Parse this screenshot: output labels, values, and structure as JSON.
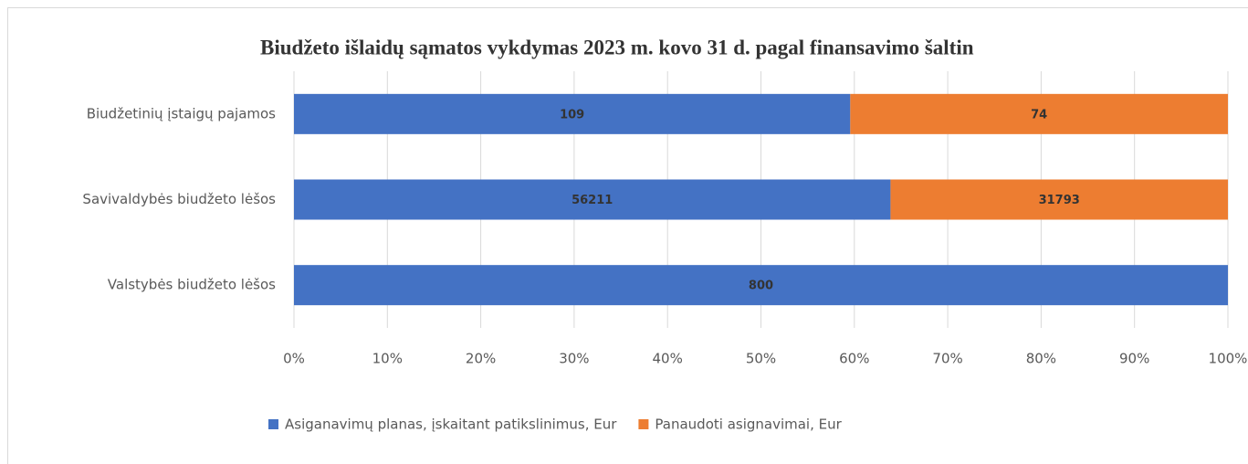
{
  "chart_data": {
    "type": "bar100h",
    "title": "Biudžeto išlaidų sąmatos vykdymas 2023 m. kovo 31 d. pagal finansavimo šaltin",
    "categories": [
      "Biudžetinių įstaigų pajamos",
      "Savivaldybės biudžeto lėšos",
      "Valstybės biudžeto lėšos"
    ],
    "series": [
      {
        "name": "Asiganavimų planas, įskaitant patikslinimus, Eur",
        "color": "#4472c4",
        "values": [
          109,
          56211,
          800
        ]
      },
      {
        "name": "Panaudoti asignavimai, Eur",
        "color": "#ed7d31",
        "values": [
          74,
          31793,
          null
        ]
      }
    ],
    "xlim": [
      0,
      100
    ],
    "xticks": [
      {
        "value": 0,
        "label": "0%"
      },
      {
        "value": 10,
        "label": "10%"
      },
      {
        "value": 20,
        "label": "20%"
      },
      {
        "value": 30,
        "label": "30%"
      },
      {
        "value": 40,
        "label": "40%"
      },
      {
        "value": 50,
        "label": "50%"
      },
      {
        "value": 60,
        "label": "60%"
      },
      {
        "value": 70,
        "label": "70%"
      },
      {
        "value": 80,
        "label": "80%"
      },
      {
        "value": 90,
        "label": "90%"
      },
      {
        "value": 100,
        "label": "100%"
      }
    ],
    "grid": true,
    "legend": "bottom"
  }
}
